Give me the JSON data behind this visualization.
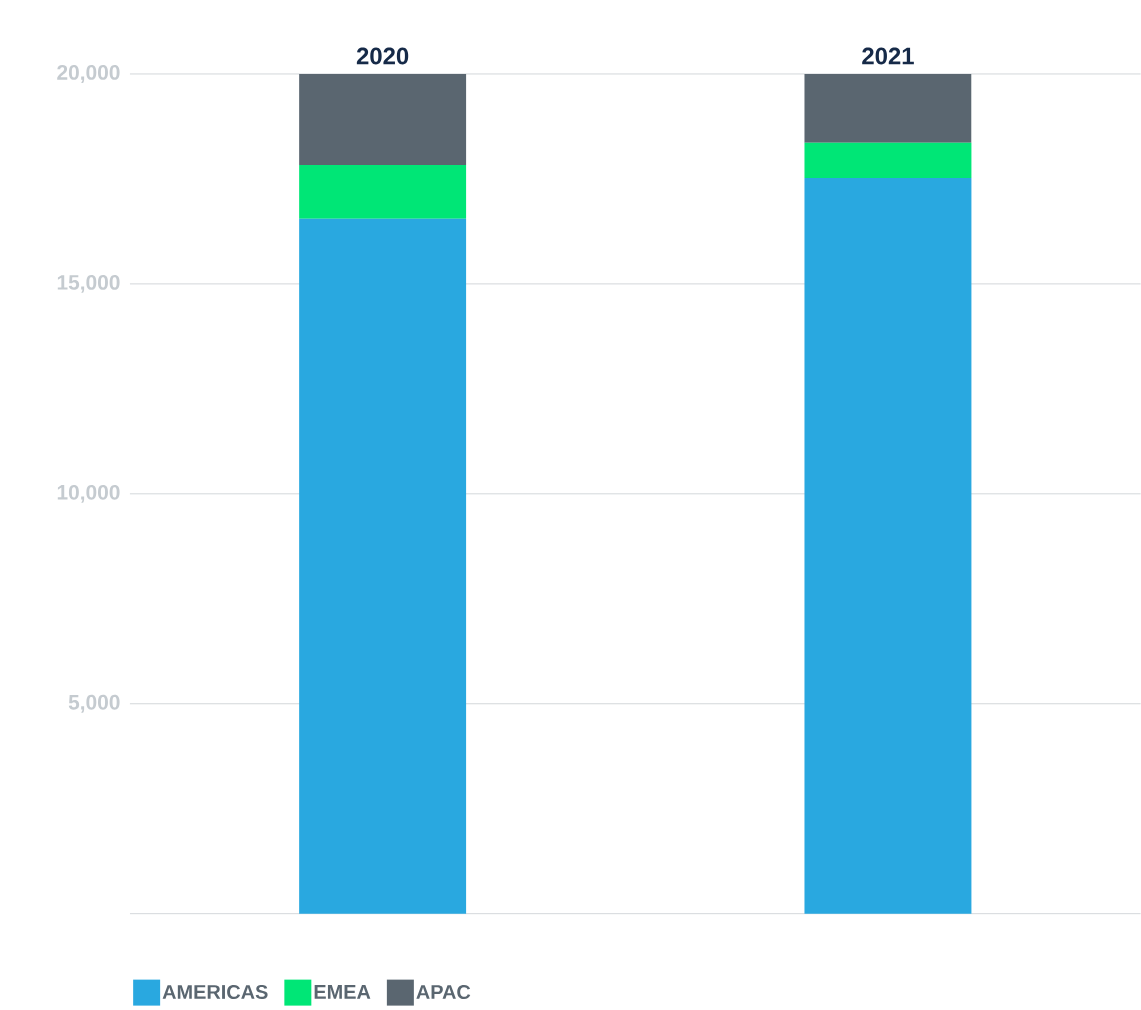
{
  "chart_data": {
    "type": "bar",
    "stacked": true,
    "categories": [
      "2020",
      "2021"
    ],
    "series": [
      {
        "name": "AMERICAS",
        "color": "#29a8e0",
        "values": [
          16550,
          17520
        ]
      },
      {
        "name": "EMEA",
        "color": "#00e676",
        "values": [
          1280,
          840
        ]
      },
      {
        "name": "APAC",
        "color": "#5a6670",
        "values": [
          2170,
          1640
        ]
      }
    ],
    "ylim": [
      0,
      20000
    ],
    "yticks": [
      {
        "value": 0,
        "label": null
      },
      {
        "value": 5000,
        "label": "5,000"
      },
      {
        "value": 10000,
        "label": "10,000"
      },
      {
        "value": 15000,
        "label": "15,000"
      },
      {
        "value": 20000,
        "label": "20,000"
      }
    ],
    "grid": "y",
    "legend": "bottom left"
  }
}
